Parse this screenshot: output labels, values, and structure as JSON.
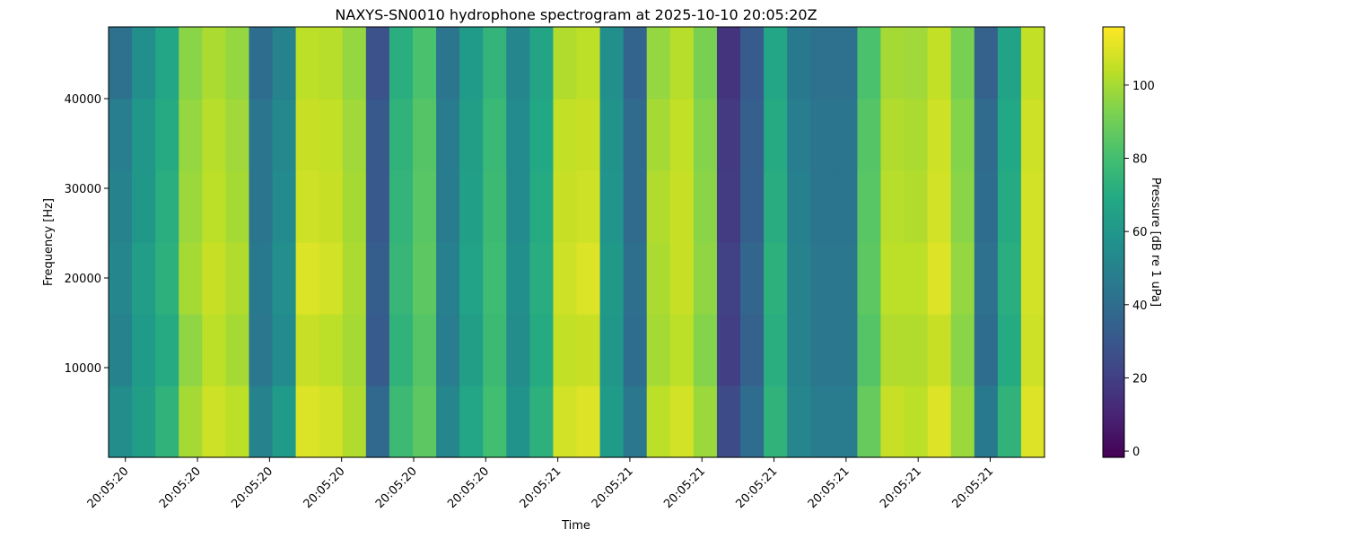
{
  "chart_data": {
    "type": "heatmap",
    "title": "NAXYS-SN0010 hydrophone spectrogram at 2025-10-10 20:05:20Z",
    "xlabel": "Time",
    "ylabel": "Frequency [Hz]",
    "colorbar_label": "Pressure [dB re 1 uPa]",
    "colormap": "viridis",
    "xlim": [
      20.115,
      22.063
    ],
    "xticks": [
      {
        "value": 20.15,
        "label": "20:05:20"
      },
      {
        "value": 20.3,
        "label": "20:05:20"
      },
      {
        "value": 20.45,
        "label": "20:05:20"
      },
      {
        "value": 20.6,
        "label": "20:05:20"
      },
      {
        "value": 20.75,
        "label": "20:05:20"
      },
      {
        "value": 20.9,
        "label": "20:05:20"
      },
      {
        "value": 21.05,
        "label": "20:05:21"
      },
      {
        "value": 21.2,
        "label": "20:05:21"
      },
      {
        "value": 21.35,
        "label": "20:05:21"
      },
      {
        "value": 21.5,
        "label": "20:05:21"
      },
      {
        "value": 21.65,
        "label": "20:05:21"
      },
      {
        "value": 21.8,
        "label": "20:05:21"
      },
      {
        "value": 21.95,
        "label": "20:05:21"
      }
    ],
    "ylim": [
      0,
      48000
    ],
    "yticks": [
      10000,
      20000,
      30000,
      40000
    ],
    "clim": [
      -1.7,
      115.9
    ],
    "cticks": [
      0,
      20,
      40,
      60,
      80,
      100
    ],
    "z": [
      [
        55,
        64,
        74,
        100,
        107,
        104,
        50,
        62,
        110,
        108,
        102,
        38,
        78,
        86,
        52,
        68,
        80,
        58,
        73,
        108,
        110,
        62,
        45,
        104,
        108,
        98,
        25,
        40,
        74,
        52,
        47,
        47,
        88,
        106,
        104,
        110,
        98,
        46,
        74,
        110
      ],
      [
        50,
        62,
        70,
        96,
        104,
        100,
        45,
        54,
        106,
        104,
        100,
        32,
        74,
        84,
        48,
        64,
        78,
        55,
        70,
        105,
        106,
        60,
        40,
        100,
        104,
        94,
        20,
        35,
        72,
        50,
        45,
        45,
        84,
        102,
        102,
        106,
        95,
        40,
        70,
        107
      ],
      [
        52,
        63,
        73,
        100,
        106,
        102,
        46,
        56,
        110,
        108,
        101,
        33,
        76,
        86,
        49,
        66,
        79,
        56,
        71,
        107,
        110,
        61,
        41,
        101,
        106,
        96,
        21,
        37,
        73,
        50,
        45,
        45,
        86,
        104,
        104,
        110,
        97,
        42,
        72,
        108
      ],
      [
        50,
        60,
        72,
        98,
        104,
        100,
        44,
        54,
        107,
        106,
        100,
        31,
        75,
        85,
        47,
        65,
        78,
        54,
        70,
        106,
        107,
        59,
        39,
        102,
        106,
        95,
        19,
        34,
        71,
        49,
        44,
        44,
        85,
        103,
        102,
        108,
        95,
        40,
        70,
        108
      ],
      [
        48,
        60,
        70,
        97,
        103,
        99,
        44,
        53,
        106,
        105,
        99,
        31,
        74,
        84,
        47,
        64,
        77,
        54,
        69,
        105,
        106,
        58,
        39,
        100,
        105,
        94,
        18,
        34,
        70,
        48,
        44,
        44,
        84,
        102,
        101,
        107,
        94,
        39,
        69,
        107
      ],
      [
        42,
        56,
        68,
        95,
        101,
        97,
        40,
        50,
        104,
        103,
        97,
        28,
        72,
        82,
        44,
        62,
        75,
        52,
        67,
        102,
        104,
        56,
        36,
        97,
        103,
        92,
        16,
        32,
        68,
        46,
        42,
        42,
        82,
        100,
        99,
        105,
        92,
        35,
        66,
        105
      ]
    ]
  }
}
